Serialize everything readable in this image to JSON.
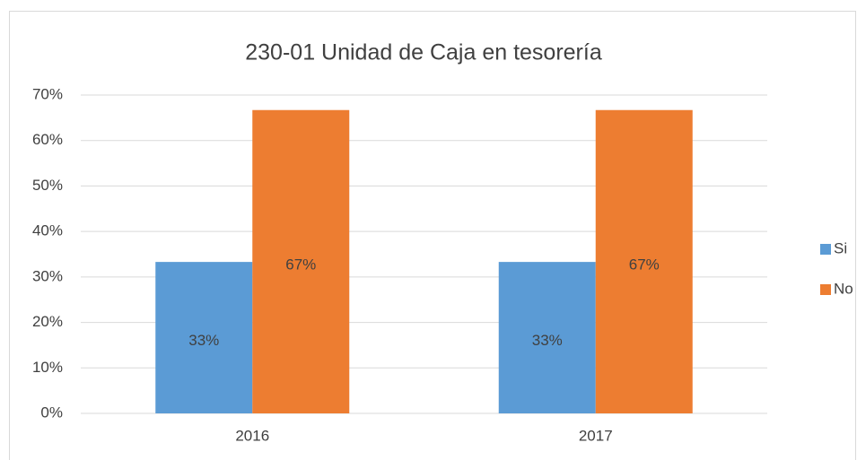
{
  "chart_data": {
    "type": "bar",
    "title": "230-01 Unidad de Caja en tesorería",
    "categories": [
      "2016",
      "2017"
    ],
    "series": [
      {
        "name": "Si",
        "color": "#5b9bd5",
        "values": [
          33.3,
          33.3
        ],
        "value_labels": [
          "33%",
          "33%"
        ]
      },
      {
        "name": "No",
        "color": "#ed7d31",
        "values": [
          66.7,
          66.7
        ],
        "value_labels": [
          "67%",
          "67%"
        ]
      }
    ],
    "ylim": [
      0,
      70
    ],
    "yticks": [
      {
        "value": 0,
        "label": "0%"
      },
      {
        "value": 10,
        "label": "10%"
      },
      {
        "value": 20,
        "label": "20%"
      },
      {
        "value": 30,
        "label": "30%"
      },
      {
        "value": 40,
        "label": "40%"
      },
      {
        "value": 50,
        "label": "50%"
      },
      {
        "value": 60,
        "label": "60%"
      },
      {
        "value": 70,
        "label": "70%"
      }
    ],
    "grid": true,
    "legend": "right"
  }
}
